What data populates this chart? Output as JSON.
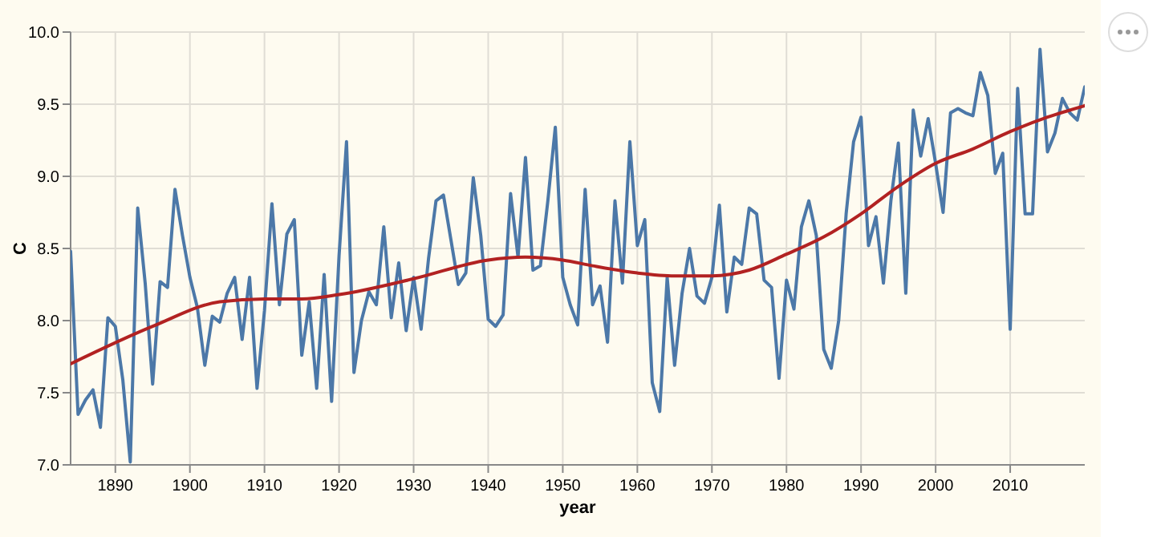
{
  "chart_data": {
    "type": "line",
    "xlabel": "year",
    "ylabel": "C",
    "xlim": [
      1884,
      2020
    ],
    "ylim": [
      7,
      10
    ],
    "xticks": [
      1890,
      1900,
      1910,
      1920,
      1930,
      1940,
      1950,
      1960,
      1970,
      1980,
      1990,
      2000,
      2010
    ],
    "yticks": [
      {
        "value": 7,
        "label": "7.0"
      },
      {
        "value": 7.5,
        "label": "7.5"
      },
      {
        "value": 8,
        "label": "8.0"
      },
      {
        "value": 8.5,
        "label": "8.5"
      },
      {
        "value": 9,
        "label": "9.0"
      },
      {
        "value": 9.5,
        "label": "9.5"
      },
      {
        "value": 10,
        "label": "10.0"
      }
    ],
    "grid": true,
    "series": [
      {
        "color": "#4c78a8",
        "x": [
          1884,
          1885,
          1886,
          1887,
          1888,
          1889,
          1890,
          1891,
          1892,
          1893,
          1894,
          1895,
          1896,
          1897,
          1898,
          1899,
          1900,
          1901,
          1902,
          1903,
          1904,
          1905,
          1906,
          1907,
          1908,
          1909,
          1910,
          1911,
          1912,
          1913,
          1914,
          1915,
          1916,
          1917,
          1918,
          1919,
          1920,
          1921,
          1922,
          1923,
          1924,
          1925,
          1926,
          1927,
          1928,
          1929,
          1930,
          1931,
          1932,
          1933,
          1934,
          1935,
          1936,
          1937,
          1938,
          1939,
          1940,
          1941,
          1942,
          1943,
          1944,
          1945,
          1946,
          1947,
          1948,
          1949,
          1950,
          1951,
          1952,
          1953,
          1954,
          1955,
          1956,
          1957,
          1958,
          1959,
          1960,
          1961,
          1962,
          1963,
          1964,
          1965,
          1966,
          1967,
          1968,
          1969,
          1970,
          1971,
          1972,
          1973,
          1974,
          1975,
          1976,
          1977,
          1978,
          1979,
          1980,
          1981,
          1982,
          1983,
          1984,
          1985,
          1986,
          1987,
          1988,
          1989,
          1990,
          1991,
          1992,
          1993,
          1994,
          1995,
          1996,
          1997,
          1998,
          1999,
          2000,
          2001,
          2002,
          2003,
          2004,
          2005,
          2006,
          2007,
          2008,
          2009,
          2010,
          2011,
          2012,
          2013,
          2014,
          2015,
          2016,
          2017,
          2018,
          2019,
          2020
        ],
        "values": [
          8.48,
          7.35,
          7.45,
          7.52,
          7.26,
          8.02,
          7.96,
          7.59,
          7.02,
          8.78,
          8.26,
          7.56,
          8.27,
          8.23,
          8.91,
          8.59,
          8.3,
          8.09,
          7.69,
          8.03,
          7.99,
          8.19,
          8.3,
          7.87,
          8.3,
          7.53,
          8.07,
          8.81,
          8.11,
          8.6,
          8.7,
          7.76,
          8.13,
          7.53,
          8.32,
          7.44,
          8.45,
          9.24,
          7.64,
          8.0,
          8.2,
          8.11,
          8.65,
          8.02,
          8.4,
          7.93,
          8.3,
          7.94,
          8.43,
          8.83,
          8.87,
          8.56,
          8.25,
          8.33,
          8.99,
          8.59,
          8.01,
          7.96,
          8.04,
          8.88,
          8.44,
          9.13,
          8.35,
          8.38,
          8.83,
          9.34,
          8.3,
          8.11,
          7.97,
          8.91,
          8.11,
          8.24,
          7.85,
          8.83,
          8.26,
          9.24,
          8.52,
          8.7,
          7.57,
          7.37,
          8.3,
          7.69,
          8.19,
          8.5,
          8.17,
          8.12,
          8.3,
          8.8,
          8.06,
          8.44,
          8.39,
          8.78,
          8.74,
          8.28,
          8.23,
          7.6,
          8.28,
          8.08,
          8.65,
          8.83,
          8.59,
          7.8,
          7.67,
          8.0,
          8.74,
          9.24,
          9.41,
          8.52,
          8.72,
          8.26,
          8.83,
          9.23,
          8.19,
          9.46,
          9.14,
          9.4,
          9.09,
          8.75,
          9.44,
          9.47,
          9.44,
          9.42,
          9.72,
          9.56,
          9.02,
          9.16,
          7.94,
          9.61,
          8.74,
          8.74,
          9.88,
          9.17,
          9.3,
          9.54,
          9.44,
          9.39,
          9.62
        ]
      },
      {
        "color": "#b22222",
        "x": [
          1884,
          1895,
          1904,
          1910,
          1915,
          1920,
          1930,
          1940,
          1945,
          1950,
          1954,
          1960,
          1965,
          1970,
          1975,
          1980,
          1985,
          1990,
          1995,
          2000,
          2005,
          2010,
          2015,
          2020
        ],
        "values": [
          7.7,
          7.96,
          8.13,
          8.15,
          8.15,
          8.18,
          8.29,
          8.42,
          8.44,
          8.42,
          8.38,
          8.33,
          8.31,
          8.31,
          8.35,
          8.46,
          8.58,
          8.74,
          8.93,
          9.09,
          9.19,
          9.31,
          9.41,
          9.49
        ]
      }
    ]
  }
}
